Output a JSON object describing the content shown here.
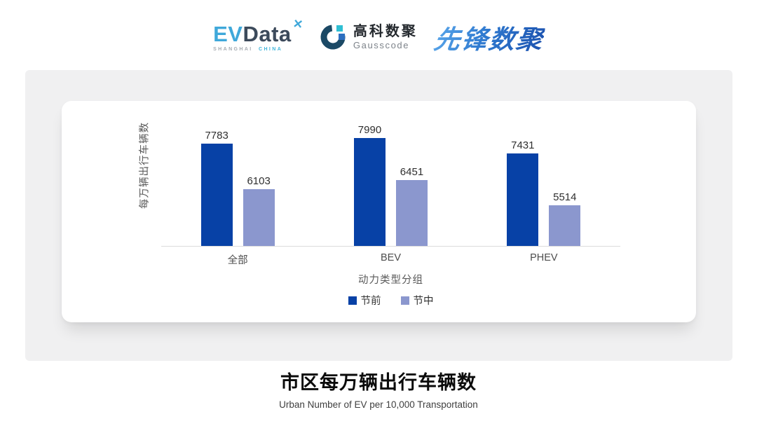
{
  "header": {
    "evdata": {
      "ev": "EV",
      "data_word": "Data",
      "mark": "✕",
      "region_gray": "SHANGHAI",
      "region_cyan": "CHINA"
    },
    "gausscode": {
      "name_cn": "高科数聚",
      "name_en": "Gausscode"
    },
    "pioneer": {
      "name": "先锋数聚"
    }
  },
  "chart_data": {
    "type": "bar",
    "title": "市区每万辆出行车辆数",
    "subtitle": "Urban Number of EV per 10,000 Transportation",
    "xlabel": "动力类型分组",
    "ylabel": "每万辆出行车辆数",
    "categories": [
      "全部",
      "BEV",
      "PHEV"
    ],
    "series": [
      {
        "name": "节前",
        "color": "#0741a6",
        "values": [
          7783,
          7990,
          7431
        ]
      },
      {
        "name": "节中",
        "color": "#8b97ce",
        "values": [
          6103,
          6451,
          5514
        ]
      }
    ],
    "ylim": [
      4000,
      9400
    ],
    "value_labels": true,
    "legend_position": "bottom",
    "grid": false,
    "axis_line_color": "#dcdcdc"
  },
  "colors": {
    "bar_pre_holiday": "#0741a6",
    "bar_mid_holiday": "#8b97ce",
    "band_background": "#f0f0f1",
    "card_background": "#ffffff",
    "evdata_cyan": "#3fa8da",
    "evdata_dark": "#3c4a5b",
    "pioneer_blue": "#1c53b0",
    "gauss_icon_dark": "#1b4965",
    "gauss_icon_cyan": "#2fbfd3",
    "gauss_icon_blue": "#2d6fc0"
  }
}
